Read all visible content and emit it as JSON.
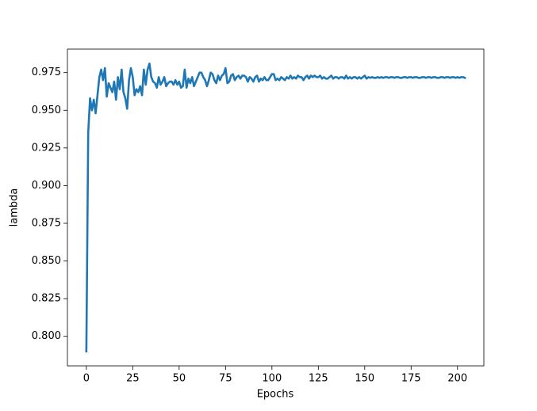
{
  "chart_data": {
    "type": "line",
    "xlabel": "Epochs",
    "ylabel": "lambda",
    "x": [
      0,
      1,
      2,
      3,
      4,
      5,
      6,
      7,
      8,
      9,
      10,
      11,
      12,
      13,
      14,
      15,
      16,
      17,
      18,
      19,
      20,
      21,
      22,
      23,
      24,
      25,
      26,
      27,
      28,
      29,
      30,
      31,
      32,
      33,
      34,
      35,
      36,
      37,
      38,
      39,
      40,
      41,
      42,
      43,
      44,
      45,
      46,
      47,
      48,
      49,
      50,
      51,
      52,
      53,
      54,
      55,
      56,
      57,
      58,
      59,
      60,
      61,
      62,
      63,
      64,
      65,
      66,
      67,
      68,
      69,
      70,
      71,
      72,
      73,
      74,
      75,
      76,
      77,
      78,
      79,
      80,
      81,
      82,
      83,
      84,
      85,
      86,
      87,
      88,
      89,
      90,
      91,
      92,
      93,
      94,
      95,
      96,
      97,
      98,
      99,
      100,
      101,
      102,
      103,
      104,
      105,
      106,
      107,
      108,
      109,
      110,
      111,
      112,
      113,
      114,
      115,
      116,
      117,
      118,
      119,
      120,
      121,
      122,
      123,
      124,
      125,
      126,
      127,
      128,
      129,
      130,
      131,
      132,
      133,
      134,
      135,
      136,
      137,
      138,
      139,
      140,
      141,
      142,
      143,
      144,
      145,
      146,
      147,
      148,
      149,
      150,
      151,
      152,
      153,
      154,
      155,
      156,
      157,
      158,
      159,
      160,
      161,
      162,
      163,
      164,
      165,
      166,
      167,
      168,
      169,
      170,
      171,
      172,
      173,
      174,
      175,
      176,
      177,
      178,
      179,
      180,
      181,
      182,
      183,
      184,
      185,
      186,
      187,
      188,
      189,
      190,
      191,
      192,
      193,
      194,
      195,
      196,
      197,
      198,
      199,
      200,
      201,
      202,
      203,
      204
    ],
    "series": [
      {
        "color": "#1f77b4",
        "values": [
          0.79,
          0.935,
          0.958,
          0.95,
          0.957,
          0.948,
          0.96,
          0.972,
          0.977,
          0.97,
          0.978,
          0.959,
          0.968,
          0.965,
          0.962,
          0.969,
          0.957,
          0.972,
          0.964,
          0.977,
          0.962,
          0.958,
          0.951,
          0.97,
          0.978,
          0.972,
          0.96,
          0.964,
          0.962,
          0.966,
          0.96,
          0.977,
          0.967,
          0.977,
          0.981,
          0.972,
          0.969,
          0.968,
          0.965,
          0.972,
          0.967,
          0.969,
          0.972,
          0.966,
          0.968,
          0.969,
          0.969,
          0.967,
          0.97,
          0.967,
          0.969,
          0.965,
          0.966,
          0.977,
          0.965,
          0.971,
          0.968,
          0.972,
          0.966,
          0.969,
          0.972,
          0.975,
          0.975,
          0.972,
          0.97,
          0.966,
          0.97,
          0.975,
          0.974,
          0.97,
          0.968,
          0.973,
          0.97,
          0.973,
          0.974,
          0.978,
          0.968,
          0.969,
          0.973,
          0.974,
          0.97,
          0.972,
          0.973,
          0.971,
          0.973,
          0.973,
          0.972,
          0.969,
          0.972,
          0.971,
          0.969,
          0.972,
          0.973,
          0.969,
          0.971,
          0.97,
          0.972,
          0.97,
          0.97,
          0.972,
          0.974,
          0.974,
          0.97,
          0.971,
          0.97,
          0.972,
          0.971,
          0.97,
          0.972,
          0.971,
          0.973,
          0.971,
          0.972,
          0.971,
          0.973,
          0.972,
          0.972,
          0.97,
          0.972,
          0.973,
          0.971,
          0.973,
          0.972,
          0.973,
          0.972,
          0.972,
          0.973,
          0.971,
          0.972,
          0.971,
          0.971,
          0.972,
          0.973,
          0.971,
          0.972,
          0.972,
          0.971,
          0.972,
          0.972,
          0.971,
          0.973,
          0.971,
          0.972,
          0.971,
          0.972,
          0.972,
          0.971,
          0.972,
          0.971,
          0.972,
          0.973,
          0.971,
          0.972,
          0.9715,
          0.972,
          0.9715,
          0.9715,
          0.972,
          0.9715,
          0.972,
          0.9715,
          0.972,
          0.972,
          0.9715,
          0.972,
          0.972,
          0.9715,
          0.972,
          0.972,
          0.9715,
          0.9715,
          0.972,
          0.972,
          0.9715,
          0.972,
          0.972,
          0.9715,
          0.972,
          0.972,
          0.9715,
          0.9715,
          0.972,
          0.972,
          0.9715,
          0.972,
          0.972,
          0.9715,
          0.972,
          0.972,
          0.9715,
          0.9715,
          0.972,
          0.972,
          0.9715,
          0.972,
          0.972,
          0.9715,
          0.972,
          0.972,
          0.9715,
          0.972,
          0.9715,
          0.972,
          0.972,
          0.9715
        ]
      }
    ],
    "xlim": [
      -10.2,
      214.2
    ],
    "xticks": [
      0,
      25,
      50,
      75,
      100,
      125,
      150,
      175,
      200
    ],
    "ylim": [
      0.7804,
      0.9906
    ],
    "yticks": [
      {
        "value": 0.8,
        "label": "0.800"
      },
      0.825,
      {
        "value": 0.85,
        "label": "0.850"
      },
      0.875,
      {
        "value": 0.9,
        "label": "0.900"
      },
      0.925,
      {
        "value": 0.95,
        "label": "0.950"
      },
      0.975
    ],
    "grid": false
  }
}
